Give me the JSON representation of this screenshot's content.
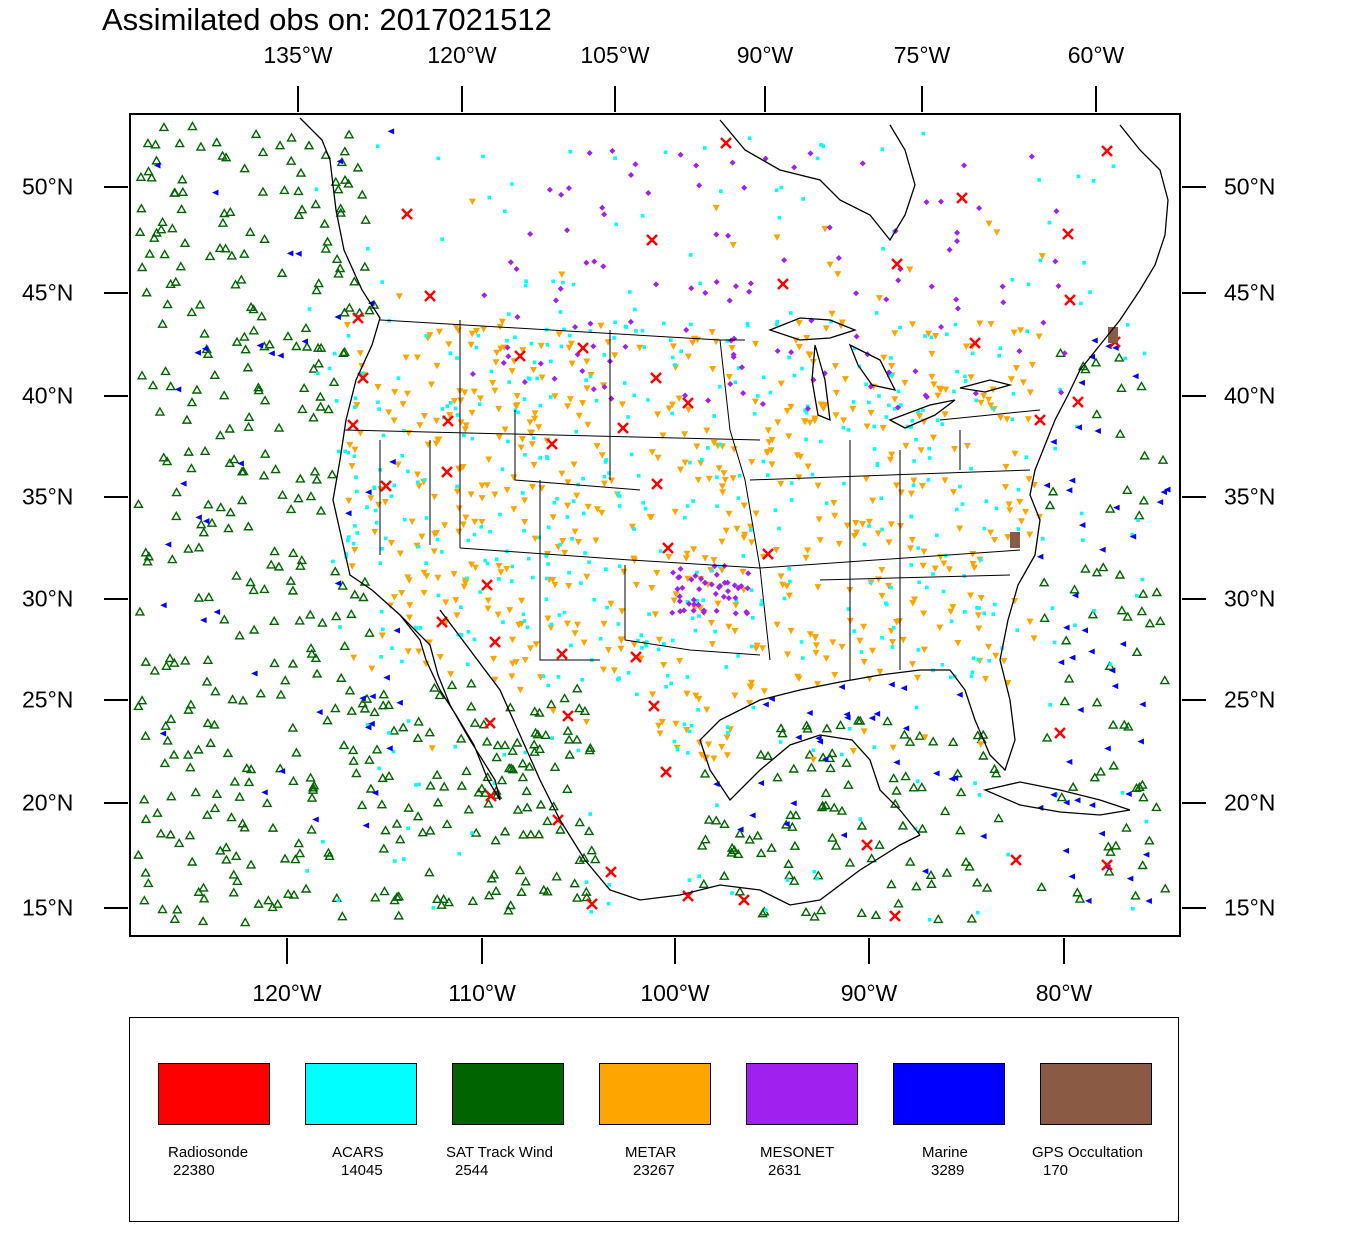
{
  "title": "Assimilated obs on: 2017021512",
  "axes": {
    "top_lon_labels": [
      "135°W",
      "120°W",
      "105°W",
      "90°W",
      "75°W",
      "60°W"
    ],
    "bottom_lon_labels": [
      "120°W",
      "110°W",
      "100°W",
      "90°W",
      "80°W"
    ],
    "left_lat_labels": [
      "50°N",
      "45°N",
      "40°N",
      "35°N",
      "30°N",
      "25°N",
      "20°N",
      "15°N"
    ],
    "right_lat_labels": [
      "50°N",
      "45°N",
      "40°N",
      "35°N",
      "30°N",
      "25°N",
      "20°N",
      "15°N"
    ]
  },
  "legend": [
    {
      "name": "Radiosonde",
      "count": "22380",
      "color": "#ff0000"
    },
    {
      "name": "ACARS",
      "count": "14045",
      "color": "#00ffff"
    },
    {
      "name": "SAT Track Wind",
      "count": "2544",
      "color": "#006400"
    },
    {
      "name": "METAR",
      "count": "23267",
      "color": "#ffa500"
    },
    {
      "name": "MESONET",
      "count": "2631",
      "color": "#a020f0"
    },
    {
      "name": "Marine",
      "count": "3289",
      "color": "#0000ff"
    },
    {
      "name": "GPS Occultation",
      "count": "170",
      "color": "#8b5a44"
    }
  ]
}
